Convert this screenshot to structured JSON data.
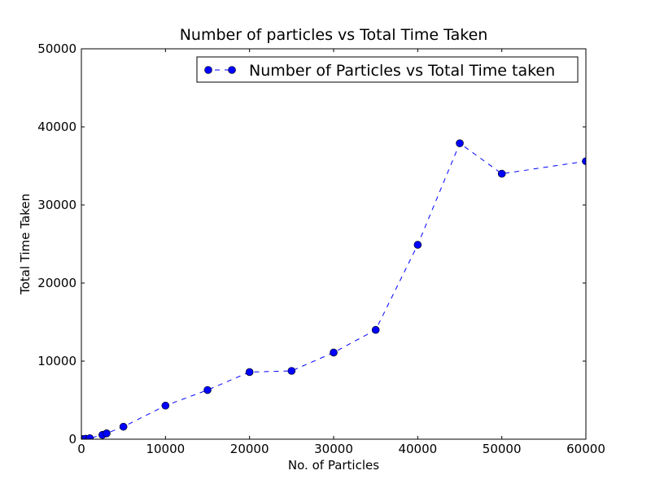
{
  "chart_data": {
    "type": "line",
    "title": "Number of particles vs Total Time Taken",
    "xlabel": "No. of Particles",
    "ylabel": "Total Time Taken",
    "xlim": [
      0,
      60000
    ],
    "ylim": [
      0,
      50000
    ],
    "xticks": [
      0,
      10000,
      20000,
      30000,
      40000,
      50000,
      60000
    ],
    "yticks": [
      0,
      10000,
      20000,
      30000,
      40000,
      50000
    ],
    "grid": false,
    "legend_position": "top-right",
    "series": [
      {
        "name": "Number of Particles vs Total Time taken",
        "color": "#0000ff",
        "line_style": "dashed",
        "marker": "circle",
        "x": [
          100,
          500,
          1000,
          2500,
          3000,
          5000,
          10000,
          15000,
          20000,
          25000,
          30000,
          35000,
          40000,
          45000,
          50000,
          60000
        ],
        "y": [
          20,
          60,
          130,
          550,
          750,
          1600,
          4300,
          6300,
          8600,
          8750,
          11100,
          14000,
          24900,
          37900,
          34000,
          35600
        ]
      }
    ]
  }
}
